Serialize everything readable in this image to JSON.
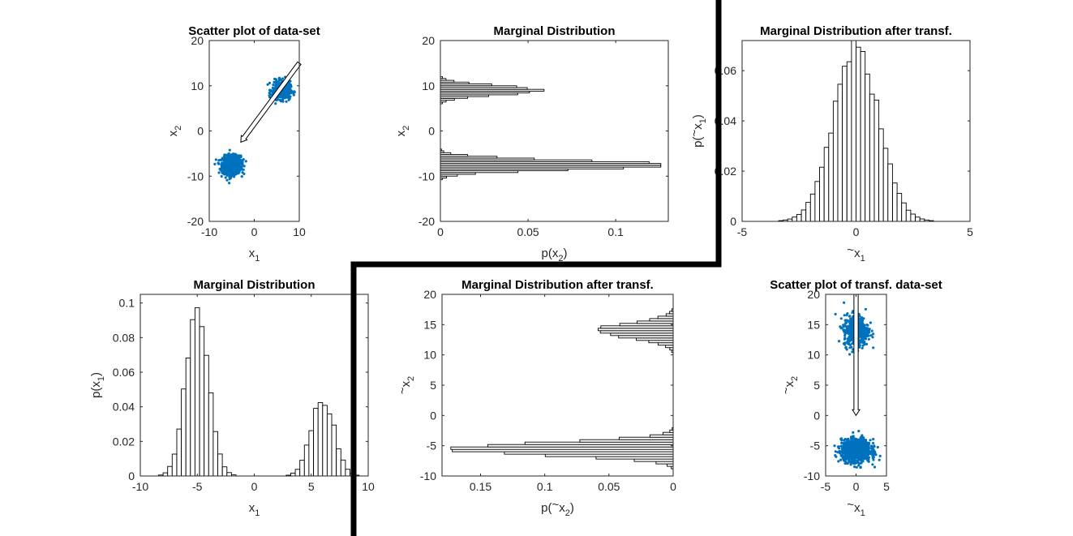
{
  "chart_data": [
    {
      "id": "scatter_orig",
      "type": "scatter",
      "title": "Scatter plot of data-set",
      "xlabel": "x",
      "xlabel_sub": "1",
      "ylabel": "x",
      "ylabel_sub": "2",
      "xlim": [
        -10,
        10
      ],
      "ylim": [
        -20,
        20
      ],
      "xticks": [
        -10,
        0,
        10
      ],
      "yticks": [
        -20,
        -10,
        0,
        10,
        20
      ],
      "color": "#0072BD",
      "clusters": [
        {
          "center": [
            -5,
            -7.5
          ],
          "spread": [
            1.0,
            1.0
          ],
          "count": 1100
        },
        {
          "center": [
            6,
            9
          ],
          "spread": [
            1.0,
            1.0
          ],
          "count": 500
        }
      ],
      "arrow": {
        "from": [
          10,
          15
        ],
        "to": [
          -3,
          -2.5
        ]
      }
    },
    {
      "id": "marg_x2",
      "type": "bar",
      "orientation": "horizontal",
      "title": "Marginal Distribution",
      "xlabel": "p(x",
      "xlabel_sub": "2",
      "xlabel_end": ")",
      "ylabel": "x",
      "ylabel_sub": "2",
      "xlim": [
        0,
        0.13
      ],
      "ylim": [
        -20,
        20
      ],
      "xticks": [
        0,
        0.05,
        0.1
      ],
      "xtick_labels": [
        "0",
        "0.05",
        "0.1"
      ],
      "yticks": [
        -20,
        -10,
        0,
        10,
        20
      ],
      "bin_width": 0.4,
      "components": [
        {
          "mean": -7.5,
          "sd": 1.0,
          "peak": 0.13
        },
        {
          "mean": 9,
          "sd": 1.0,
          "peak": 0.057
        }
      ]
    },
    {
      "id": "marg_tx1",
      "type": "bar",
      "orientation": "vertical",
      "title": "Marginal Distribution after transf.",
      "xlabel": "x",
      "xlabel_sub": "1",
      "xlabel_tilde": "~",
      "ylabel": "p(",
      "ylabel_tilde": "~",
      "ylabel_mid": "x",
      "ylabel_sub": "1",
      "ylabel_end": ")",
      "xlim": [
        -5,
        5
      ],
      "ylim": [
        0,
        0.072
      ],
      "xticks": [
        -5,
        0,
        5
      ],
      "yticks": [
        0,
        0.02,
        0.04,
        0.06
      ],
      "ytick_labels": [
        "0",
        "0.02",
        "0.04",
        "0.06"
      ],
      "bin_width": 0.2,
      "components": [
        {
          "mean": 0,
          "sd": 1.0,
          "peak": 0.068
        }
      ]
    },
    {
      "id": "marg_x1",
      "type": "bar",
      "orientation": "vertical",
      "title": "Marginal Distribution",
      "xlabel": "x",
      "xlabel_sub": "1",
      "ylabel": "p(x",
      "ylabel_sub": "1",
      "ylabel_end": ")",
      "xlim": [
        -10,
        10
      ],
      "ylim": [
        0,
        0.105
      ],
      "xticks": [
        -10,
        -5,
        0,
        5,
        10
      ],
      "yticks": [
        0,
        0.02,
        0.04,
        0.06,
        0.08,
        0.1
      ],
      "ytick_labels": [
        "0",
        "0.02",
        "0.04",
        "0.06",
        "0.08",
        "0.1"
      ],
      "bin_width": 0.4,
      "components": [
        {
          "mean": -5,
          "sd": 1.0,
          "peak": 0.1
        },
        {
          "mean": 6,
          "sd": 1.0,
          "peak": 0.045
        }
      ]
    },
    {
      "id": "marg_tx2",
      "type": "bar",
      "orientation": "horizontal",
      "reversed_x": true,
      "title": "Marginal Distribution after transf.",
      "xlabel": "p(",
      "xlabel_tilde": "~",
      "xlabel_mid": "x",
      "xlabel_sub": "2",
      "xlabel_end": ")",
      "ylabel": "x",
      "ylabel_sub": "2",
      "ylabel_tilde": "~",
      "xlim": [
        0,
        0.18
      ],
      "ylim": [
        -10,
        20
      ],
      "xticks": [
        0.15,
        0.1,
        0.05,
        0
      ],
      "xtick_labels": [
        "0.15",
        "0.1",
        "0.05",
        "0"
      ],
      "yticks": [
        -10,
        -5,
        0,
        5,
        10,
        15,
        20
      ],
      "bin_width": 0.4,
      "components": [
        {
          "mean": -5.5,
          "sd": 1.0,
          "peak": 0.175
        },
        {
          "mean": 14,
          "sd": 1.2,
          "peak": 0.06
        }
      ]
    },
    {
      "id": "scatter_transf",
      "type": "scatter",
      "title": "Scatter plot of transf. data-set",
      "xlabel": "x",
      "xlabel_sub": "1",
      "xlabel_tilde": "~",
      "ylabel": "x",
      "ylabel_sub": "2",
      "ylabel_tilde": "~",
      "xlim": [
        -5,
        5
      ],
      "ylim": [
        -10,
        20
      ],
      "xticks": [
        -5,
        0,
        5
      ],
      "yticks": [
        -10,
        -5,
        0,
        5,
        10,
        15,
        20
      ],
      "color": "#0072BD",
      "clusters": [
        {
          "center": [
            0,
            14
          ],
          "spread": [
            1.0,
            1.3
          ],
          "count": 500
        },
        {
          "center": [
            0,
            -5.8
          ],
          "spread": [
            1.2,
            0.9
          ],
          "count": 1100
        }
      ],
      "arrow": {
        "from": [
          0,
          20
        ],
        "to": [
          0,
          0
        ]
      }
    }
  ]
}
